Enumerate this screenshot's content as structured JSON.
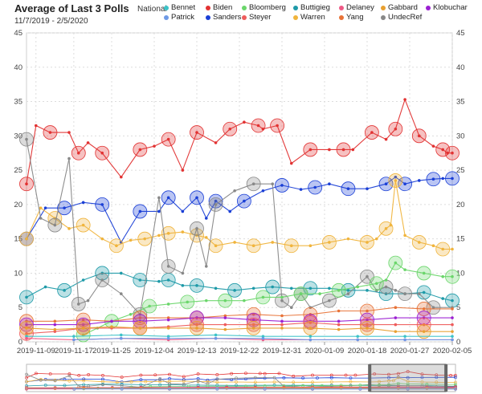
{
  "header": {
    "title": "Average of Last 3 Polls",
    "subtitle": "11/7/2019 - 2/5/2020",
    "scope": "National"
  },
  "colors": {
    "Bennet": "#3cc3c8",
    "Biden": "#e23232",
    "Bloomberg": "#6bd66b",
    "Buttigieg": "#1e9aa8",
    "Delaney": "#ee5a86",
    "Gabbard": "#e8a030",
    "Klobuchar": "#9b1fd2",
    "Patrick": "#6e9ae6",
    "Sanders": "#1a3fd6",
    "Steyer": "#ee5c5c",
    "Warren": "#f0b43c",
    "Yang": "#e87338",
    "UndecRef": "#888888"
  },
  "legend": {
    "items": [
      "Bennet",
      "Biden",
      "Bloomberg",
      "Buttigieg",
      "Delaney",
      "Gabbard",
      "Klobuchar",
      "Patrick",
      "Sanders",
      "Steyer",
      "Warren",
      "Yang",
      "UndecRef"
    ]
  },
  "chart_data": {
    "type": "line",
    "title": "Average of Last 3 Polls",
    "subtitle": "11/7/2019 - 2/5/2020",
    "xlabel": "",
    "ylabel": "",
    "ylim": [
      0,
      45
    ],
    "yticks": [
      0,
      5,
      10,
      15,
      20,
      25,
      30,
      35,
      40,
      45
    ],
    "xrange": [
      "2019-11-07",
      "2020-02-05"
    ],
    "xticks": [
      "2019-11-09",
      "2019-11-17",
      "2019-11-25",
      "2019-12-04",
      "2019-12-13",
      "2019-12-22",
      "2019-12-31",
      "2020-01-09",
      "2020-01-18",
      "2020-01-27",
      "2020-02-05"
    ],
    "grid": true,
    "legend_position": "top",
    "series": [
      {
        "name": "Biden",
        "x": [
          0,
          2,
          5,
          9,
          11,
          13,
          16,
          20,
          24,
          27,
          30,
          33,
          36,
          40,
          43,
          46,
          49,
          50,
          53,
          56,
          60,
          64,
          67,
          69,
          73,
          76,
          78,
          80,
          83,
          86,
          88,
          89,
          90
        ],
        "values": [
          23,
          31.5,
          30.5,
          30.5,
          27.5,
          29,
          27.5,
          24,
          28,
          28.5,
          29.5,
          25,
          30.5,
          29,
          31,
          32,
          31.5,
          31,
          31.5,
          26,
          28,
          28,
          28,
          28,
          30.5,
          29.5,
          31,
          35.3,
          30,
          28.5,
          28,
          27.5,
          27.5
        ]
      },
      {
        "name": "Sanders",
        "x": [
          0,
          4,
          8,
          12,
          16,
          20,
          24,
          28,
          30,
          33,
          36,
          38,
          40,
          43,
          46,
          50,
          54,
          58,
          61,
          64,
          68,
          72,
          76,
          78,
          80,
          83,
          86,
          88,
          90
        ],
        "values": [
          15,
          19.5,
          19.5,
          20.3,
          20,
          14.5,
          19,
          19,
          21,
          19,
          21,
          18,
          20.5,
          19,
          20.5,
          22,
          22.8,
          22.2,
          22.5,
          23,
          22.3,
          22.3,
          23,
          24,
          23,
          23.5,
          23.7,
          23.8,
          23.8
        ]
      },
      {
        "name": "Warren",
        "x": [
          0,
          3,
          6,
          9,
          12,
          16,
          19,
          22,
          25,
          28,
          30,
          33,
          36,
          38,
          40,
          44,
          48,
          52,
          56,
          60,
          64,
          68,
          72,
          74,
          76,
          77,
          78,
          80,
          83,
          86,
          88,
          90
        ],
        "values": [
          15,
          19.5,
          18,
          16.5,
          17,
          15,
          14,
          14.8,
          15,
          15.5,
          15.8,
          16,
          15.5,
          15.2,
          14,
          14.5,
          14,
          14.5,
          14,
          14,
          14.5,
          15,
          14.5,
          15,
          16.5,
          17,
          23.5,
          15.5,
          14.5,
          14,
          13.5,
          13.5
        ]
      },
      {
        "name": "Buttigieg",
        "x": [
          0,
          4,
          8,
          12,
          16,
          20,
          24,
          28,
          30,
          33,
          36,
          40,
          44,
          48,
          52,
          56,
          60,
          64,
          68,
          72,
          76,
          80,
          84,
          88,
          90
        ],
        "values": [
          6.5,
          8,
          7.5,
          9,
          10,
          10,
          9,
          8.8,
          9,
          8.2,
          8.2,
          7.8,
          7.5,
          7.8,
          8,
          7.8,
          7.8,
          7.8,
          7.5,
          7.5,
          7,
          7,
          7.2,
          6.3,
          6
        ]
      },
      {
        "name": "UndecRef",
        "x": [
          0,
          3,
          6,
          9,
          11,
          13,
          16,
          20,
          24,
          28,
          30,
          33,
          36,
          38,
          40,
          44,
          48,
          52,
          54,
          56,
          58,
          60,
          64,
          68,
          72,
          74,
          76,
          78,
          80,
          83,
          86,
          90
        ],
        "values": [
          29.5,
          18,
          17,
          26.7,
          5.5,
          6,
          9,
          7,
          4,
          21,
          11,
          10,
          16.5,
          11,
          20,
          22,
          23,
          23,
          6,
          5,
          7,
          5,
          6,
          7,
          9.5,
          7.5,
          8,
          7.5,
          7,
          7,
          5,
          5
        ]
      },
      {
        "name": "Bloomberg",
        "x": [
          12,
          15,
          18,
          22,
          26,
          30,
          34,
          38,
          42,
          46,
          50,
          54,
          58,
          62,
          66,
          70,
          74,
          76,
          78,
          80,
          84,
          88,
          90
        ],
        "values": [
          1,
          2,
          3,
          4,
          5.2,
          5.5,
          5.8,
          6,
          6,
          6,
          6.5,
          6.5,
          7,
          7,
          7.5,
          8,
          8.5,
          9,
          11.5,
          10.5,
          10,
          9.5,
          9.5
        ]
      },
      {
        "name": "Yang",
        "x": [
          0,
          6,
          12,
          18,
          24,
          30,
          36,
          42,
          48,
          54,
          60,
          66,
          72,
          78,
          84,
          90
        ],
        "values": [
          3,
          3,
          3.2,
          3,
          3.5,
          3.5,
          3.5,
          3.8,
          4,
          3.8,
          4,
          4.5,
          4.5,
          5,
          4.8,
          4.8
        ]
      },
      {
        "name": "Klobuchar",
        "x": [
          0,
          6,
          12,
          18,
          24,
          30,
          36,
          42,
          48,
          54,
          60,
          66,
          72,
          78,
          84,
          90
        ],
        "values": [
          2.5,
          2.5,
          2.5,
          3,
          3,
          3.2,
          3.5,
          3.5,
          3.2,
          3,
          3,
          3,
          3.2,
          3.5,
          3.5,
          3.5
        ]
      },
      {
        "name": "Steyer",
        "x": [
          0,
          6,
          12,
          18,
          24,
          30,
          36,
          42,
          48,
          54,
          60,
          66,
          72,
          78,
          84,
          90
        ],
        "values": [
          1.2,
          1.5,
          2,
          2,
          2,
          2.2,
          2.5,
          2.5,
          2.5,
          2.5,
          2.8,
          2.5,
          2.5,
          2.5,
          2.5,
          2.5
        ]
      },
      {
        "name": "Gabbard",
        "x": [
          0,
          6,
          12,
          18,
          24,
          30,
          36,
          42,
          48,
          54,
          60,
          66,
          72,
          78,
          84,
          90
        ],
        "values": [
          2,
          1.8,
          2,
          2.2,
          2,
          2,
          2,
          1.8,
          2,
          2,
          2,
          1.8,
          2,
          1.5,
          1.5,
          1.5
        ]
      },
      {
        "name": "Bennet",
        "x": [
          0,
          10,
          20,
          30,
          40,
          50,
          60,
          70,
          80,
          90
        ],
        "values": [
          0.8,
          0.8,
          1,
          0.8,
          1,
          0.8,
          0.8,
          0.8,
          0.8,
          0.8
        ]
      },
      {
        "name": "Delaney",
        "x": [
          0,
          10,
          20,
          30,
          40,
          50,
          60,
          70,
          80,
          90
        ],
        "values": [
          0.5,
          0.3,
          0.5,
          0.3,
          0.5,
          0.3,
          0.3,
          0.3,
          0.3,
          0.3
        ]
      },
      {
        "name": "Patrick",
        "x": [
          10,
          20,
          30,
          40,
          50,
          60,
          70,
          80,
          90
        ],
        "values": [
          0.3,
          0.5,
          0.5,
          0.5,
          0.5,
          0.3,
          0.3,
          0.3,
          0.3
        ]
      }
    ]
  }
}
